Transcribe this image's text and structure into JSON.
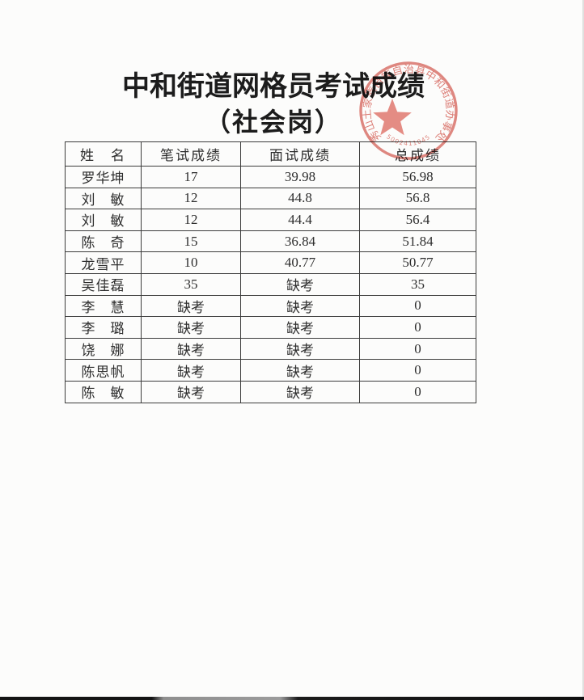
{
  "page": {
    "title": "中和街道网格员考试成绩",
    "subtitle": "（社会岗）"
  },
  "table": {
    "headers": [
      "姓　名",
      "笔试成绩",
      "面试成绩",
      "总成绩"
    ],
    "rows": [
      [
        "罗华坤",
        "17",
        "39.98",
        "56.98"
      ],
      [
        "刘　敏",
        "12",
        "44.8",
        "56.8"
      ],
      [
        "刘　敏",
        "12",
        "44.4",
        "56.4"
      ],
      [
        "陈　奇",
        "15",
        "36.84",
        "51.84"
      ],
      [
        "龙雪平",
        "10",
        "40.77",
        "50.77"
      ],
      [
        "吴佳磊",
        "35",
        "缺考",
        "35"
      ],
      [
        "李　慧",
        "缺考",
        "缺考",
        "0"
      ],
      [
        "李　璐",
        "缺考",
        "缺考",
        "0"
      ],
      [
        "饶　娜",
        "缺考",
        "缺考",
        "0"
      ],
      [
        "陈思帆",
        "缺考",
        "缺考",
        "0"
      ],
      [
        "陈　敏",
        "缺考",
        "缺考",
        "0"
      ]
    ],
    "absent_label": "缺考"
  },
  "seal": {
    "ring_text": "秀山土家族苗族自治县中和街道办事处",
    "code": "5002411045",
    "color": "#d4564c"
  }
}
